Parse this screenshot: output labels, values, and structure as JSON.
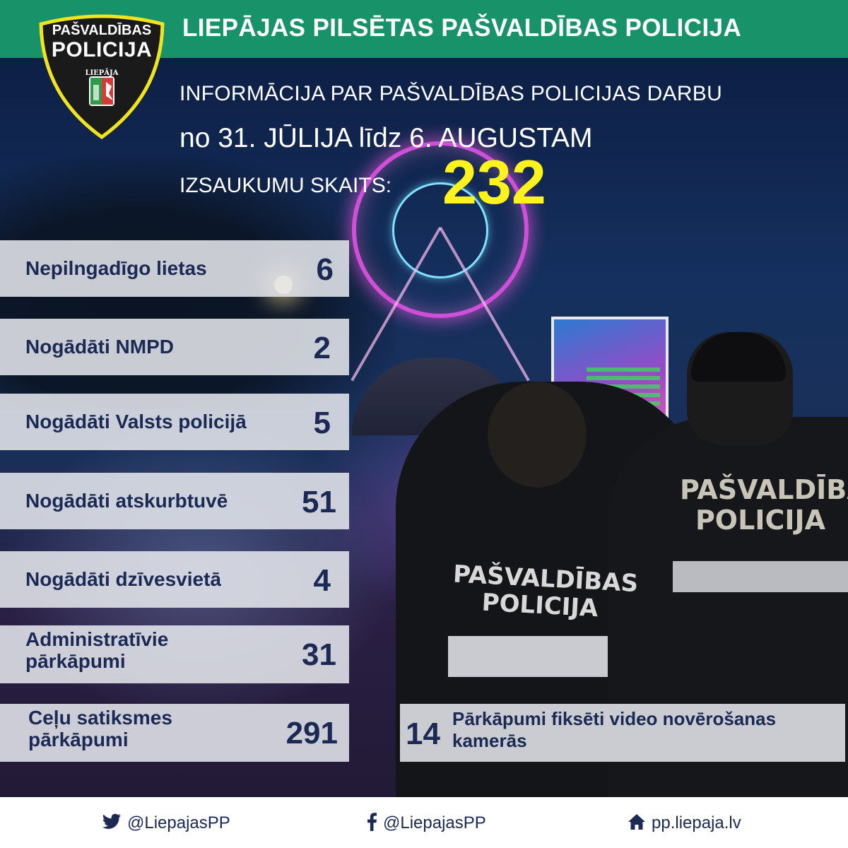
{
  "header": {
    "title": "LIEPĀJAS PILSĒTAS PAŠVALDĪBAS POLICIJA"
  },
  "badge": {
    "top": "PAŠVALDĪBAS",
    "main": "POLICIJA",
    "city": "LIEPĀJA"
  },
  "intro": {
    "line1": "INFORMĀCIJA PAR PAŠVALDĪBAS POLICIJAS DARBU",
    "line2": "no  31. JŪLIJA līdz 6. AUGUSTAM",
    "calls_label": "IZSAUKUMU SKAITS:",
    "calls_value": "232"
  },
  "stats": [
    {
      "label": "Nepilngadīgo lietas",
      "value": "6"
    },
    {
      "label": "Nogādāti NMPD",
      "value": "2"
    },
    {
      "label": "Nogādāti Valsts policijā",
      "value": "5"
    },
    {
      "label": "Nogādāti atskurbtuvē",
      "value": "51"
    },
    {
      "label": "Nogādāti dzīvesvietā",
      "value": "4"
    },
    {
      "label": "Administratīvie pārkāpumi",
      "value": "31"
    },
    {
      "label": "Ceļu satiksmes pārkāpumi",
      "value": "291"
    }
  ],
  "video": {
    "value": "14",
    "label": "Pārkāpumi fiksēti video novērošanas kamerās"
  },
  "photo": {
    "vest1": "PAŠVALDĪBAS POLICIJA",
    "vest2": "PAŠVALDĪBAS POLICIJA"
  },
  "footer": {
    "twitter": "@LiepajasPP",
    "facebook": "@LiepajasPP",
    "website": "pp.liepaja.lv"
  },
  "colors": {
    "header_green": "#179269",
    "navy_text": "#1b2a54",
    "highlight_yellow": "#fff31d",
    "badge_yellow": "#f2e41c"
  },
  "icons": [
    "twitter-icon",
    "facebook-icon",
    "home-icon"
  ]
}
